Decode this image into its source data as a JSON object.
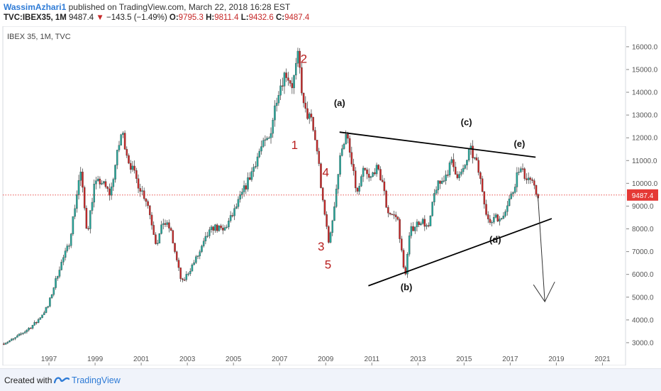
{
  "header": {
    "author": "WassimAzhari1",
    "published_text": " published on TradingView.com, March 22, 2018 16:28 EST",
    "symbol": "TVC:IBEX35, 1M",
    "last": "9487.4",
    "change": "−143.5 (−1.49%)",
    "o_label": "O:",
    "o": "9795.3",
    "h_label": "H:",
    "h": "9811.4",
    "l_label": "L:",
    "l": "9432.6",
    "c_label": "C:",
    "c": "9487.4"
  },
  "footer": {
    "created_with": "Created with",
    "brand": "TradingView"
  },
  "colors": {
    "up": "#26a69a",
    "down": "#c62828",
    "price_line": "#e53935",
    "brand_blue": "#2e7bd6"
  },
  "chart_data": {
    "type": "candlestick",
    "title": "IBEX 35, 1M, TVC",
    "interval": "1M",
    "xlabel": "",
    "ylabel": "",
    "x_ticks": [
      "1997",
      "1999",
      "2001",
      "2003",
      "2005",
      "2007",
      "2009",
      "2011",
      "2013",
      "2015",
      "2017",
      "2019",
      "2021"
    ],
    "y_ticks": [
      "3000.0",
      "4000.0",
      "5000.0",
      "6000.0",
      "7000.0",
      "8000.0",
      "9000.0",
      "10000.0",
      "11000.0",
      "12000.0",
      "13000.0",
      "14000.0",
      "15000.0",
      "16000.0"
    ],
    "ylim": [
      2000,
      16900
    ],
    "xlim": [
      1995.0,
      2022.0
    ],
    "last_price": 9487.4,
    "last_price_label": "9487.4",
    "price_path": [
      [
        1995.0,
        2950
      ],
      [
        1995.5,
        3150
      ],
      [
        1996.0,
        3500
      ],
      [
        1996.5,
        3900
      ],
      [
        1997.0,
        4600
      ],
      [
        1997.5,
        6300
      ],
      [
        1997.9,
        7300
      ],
      [
        1998.2,
        9200
      ],
      [
        1998.4,
        10600
      ],
      [
        1998.7,
        7800
      ],
      [
        1999.0,
        9900
      ],
      [
        1999.3,
        10100
      ],
      [
        1999.7,
        9500
      ],
      [
        1999.95,
        11000
      ],
      [
        2000.2,
        12300
      ],
      [
        2000.5,
        11000
      ],
      [
        2000.9,
        10000
      ],
      [
        2001.3,
        9200
      ],
      [
        2001.7,
        7300
      ],
      [
        2002.0,
        8300
      ],
      [
        2002.3,
        8000
      ],
      [
        2002.6,
        6500
      ],
      [
        2002.8,
        5600
      ],
      [
        2003.2,
        6300
      ],
      [
        2003.6,
        7000
      ],
      [
        2003.9,
        7700
      ],
      [
        2004.2,
        8100
      ],
      [
        2004.6,
        7900
      ],
      [
        2005.0,
        8600
      ],
      [
        2005.4,
        9500
      ],
      [
        2005.8,
        10400
      ],
      [
        2006.2,
        11500
      ],
      [
        2006.6,
        12000
      ],
      [
        2006.95,
        14000
      ],
      [
        2007.3,
        14900
      ],
      [
        2007.6,
        14300
      ],
      [
        2007.85,
        15600
      ],
      [
        2008.1,
        13200
      ],
      [
        2008.4,
        12800
      ],
      [
        2008.7,
        11300
      ],
      [
        2008.9,
        9200
      ],
      [
        2009.05,
        8300
      ],
      [
        2009.2,
        7300
      ],
      [
        2009.5,
        9800
      ],
      [
        2009.75,
        11700
      ],
      [
        2009.95,
        12100
      ],
      [
        2010.15,
        10900
      ],
      [
        2010.4,
        9500
      ],
      [
        2010.7,
        10600
      ],
      [
        2010.95,
        10100
      ],
      [
        2011.2,
        10700
      ],
      [
        2011.5,
        10100
      ],
      [
        2011.7,
        8800
      ],
      [
        2011.95,
        8600
      ],
      [
        2012.15,
        8500
      ],
      [
        2012.3,
        7300
      ],
      [
        2012.4,
        6300
      ],
      [
        2012.5,
        6100
      ],
      [
        2012.7,
        7900
      ],
      [
        2012.95,
        8200
      ],
      [
        2013.2,
        8400
      ],
      [
        2013.5,
        8000
      ],
      [
        2013.8,
        9800
      ],
      [
        2014.1,
        10100
      ],
      [
        2014.5,
        10900
      ],
      [
        2014.8,
        10300
      ],
      [
        2015.0,
        10500
      ],
      [
        2015.3,
        11500
      ],
      [
        2015.6,
        10800
      ],
      [
        2015.8,
        9900
      ],
      [
        2016.0,
        8800
      ],
      [
        2016.15,
        8100
      ],
      [
        2016.4,
        8700
      ],
      [
        2016.6,
        8300
      ],
      [
        2016.9,
        9100
      ],
      [
        2017.15,
        9600
      ],
      [
        2017.4,
        10700
      ],
      [
        2017.7,
        10300
      ],
      [
        2017.9,
        10200
      ],
      [
        2018.1,
        9700
      ],
      [
        2018.2,
        9487
      ]
    ],
    "annotations": {
      "wave_labels_red": [
        {
          "text": "2",
          "x": 2008.05,
          "y": 15300
        },
        {
          "text": "1",
          "x": 2007.65,
          "y": 11500
        },
        {
          "text": "4",
          "x": 2009.0,
          "y": 10300
        },
        {
          "text": "3",
          "x": 2008.8,
          "y": 7050
        },
        {
          "text": "5",
          "x": 2009.1,
          "y": 6250
        }
      ],
      "wave_labels_black": [
        {
          "text": "(a)",
          "x": 2009.6,
          "y": 13400
        },
        {
          "text": "(c)",
          "x": 2015.1,
          "y": 12550
        },
        {
          "text": "(e)",
          "x": 2017.4,
          "y": 11600
        },
        {
          "text": "(b)",
          "x": 2012.5,
          "y": 5300
        },
        {
          "text": "(d)",
          "x": 2016.35,
          "y": 7400
        }
      ],
      "trendlines": [
        {
          "name": "upper",
          "from": [
            2009.6,
            12250
          ],
          "to": [
            2018.1,
            11150
          ]
        },
        {
          "name": "lower",
          "from": [
            2010.85,
            5500
          ],
          "to": [
            2018.8,
            8450
          ]
        }
      ],
      "projection_arrow": {
        "from": [
          2018.2,
          9450
        ],
        "to": [
          2018.5,
          4800
        ]
      }
    }
  }
}
